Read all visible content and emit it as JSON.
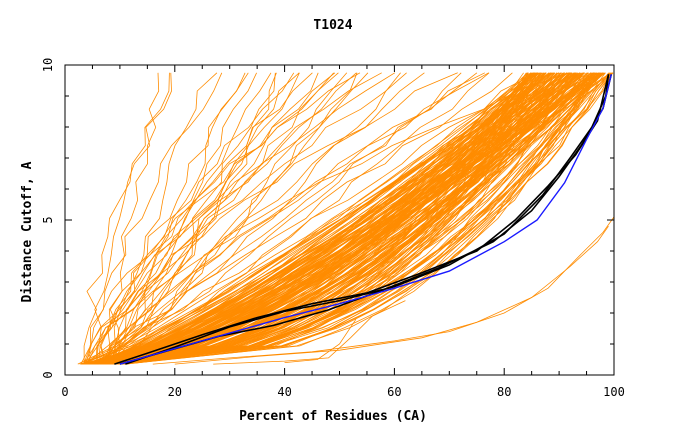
{
  "chart_data": {
    "type": "line",
    "title": "T1024",
    "xlabel": "Percent of Residues (CA)",
    "ylabel": "Distance Cutoff, A",
    "xlim": [
      0,
      100
    ],
    "ylim": [
      0,
      10
    ],
    "x_ticks": [
      0,
      20,
      40,
      60,
      80,
      100
    ],
    "y_ticks": [
      0,
      5,
      10
    ],
    "x_tick_labels": [
      "0",
      "20",
      "40",
      "60",
      "80",
      "100"
    ],
    "y_tick_labels": [
      "0",
      "5",
      "10"
    ],
    "colors": {
      "models": "#ff8c00",
      "highlight": "#000000",
      "target": "#1a1aff",
      "axis": "#000000"
    },
    "series_groups": {
      "orange_bundle_count": 200,
      "orange_steep_count": 40,
      "orange_outlier_count": 4
    },
    "highlight_series": [
      {
        "name": "black-1",
        "points": [
          [
            9,
            0.35
          ],
          [
            15,
            0.7
          ],
          [
            25,
            1.3
          ],
          [
            35,
            1.85
          ],
          [
            45,
            2.3
          ],
          [
            55,
            2.65
          ],
          [
            65,
            3.3
          ],
          [
            75,
            4.0
          ],
          [
            82,
            5.0
          ],
          [
            88,
            6.1
          ],
          [
            93,
            7.1
          ],
          [
            97,
            8.2
          ],
          [
            99,
            9.7
          ]
        ]
      },
      {
        "name": "black-2",
        "points": [
          [
            10,
            0.35
          ],
          [
            18,
            0.75
          ],
          [
            28,
            1.25
          ],
          [
            38,
            1.6
          ],
          [
            48,
            2.1
          ],
          [
            58,
            2.75
          ],
          [
            68,
            3.45
          ],
          [
            78,
            4.3
          ],
          [
            85,
            5.3
          ],
          [
            90,
            6.4
          ],
          [
            94,
            7.4
          ],
          [
            98,
            8.6
          ],
          [
            99.5,
            9.7
          ]
        ]
      },
      {
        "name": "black-3",
        "points": [
          [
            11,
            0.35
          ],
          [
            20,
            0.9
          ],
          [
            30,
            1.55
          ],
          [
            40,
            2.05
          ],
          [
            50,
            2.4
          ],
          [
            60,
            2.85
          ],
          [
            70,
            3.55
          ],
          [
            80,
            4.55
          ],
          [
            87,
            5.8
          ],
          [
            92,
            7.0
          ],
          [
            96,
            8.0
          ],
          [
            98.5,
            9.0
          ],
          [
            99,
            9.7
          ]
        ]
      }
    ],
    "target_series": {
      "name": "blue",
      "points": [
        [
          10,
          0.35
        ],
        [
          20,
          0.85
        ],
        [
          30,
          1.35
        ],
        [
          40,
          1.85
        ],
        [
          50,
          2.3
        ],
        [
          60,
          2.8
        ],
        [
          70,
          3.35
        ],
        [
          80,
          4.3
        ],
        [
          86,
          5.0
        ],
        [
          91,
          6.2
        ],
        [
          95,
          7.6
        ],
        [
          98,
          8.6
        ],
        [
          99.5,
          9.7
        ]
      ]
    }
  }
}
